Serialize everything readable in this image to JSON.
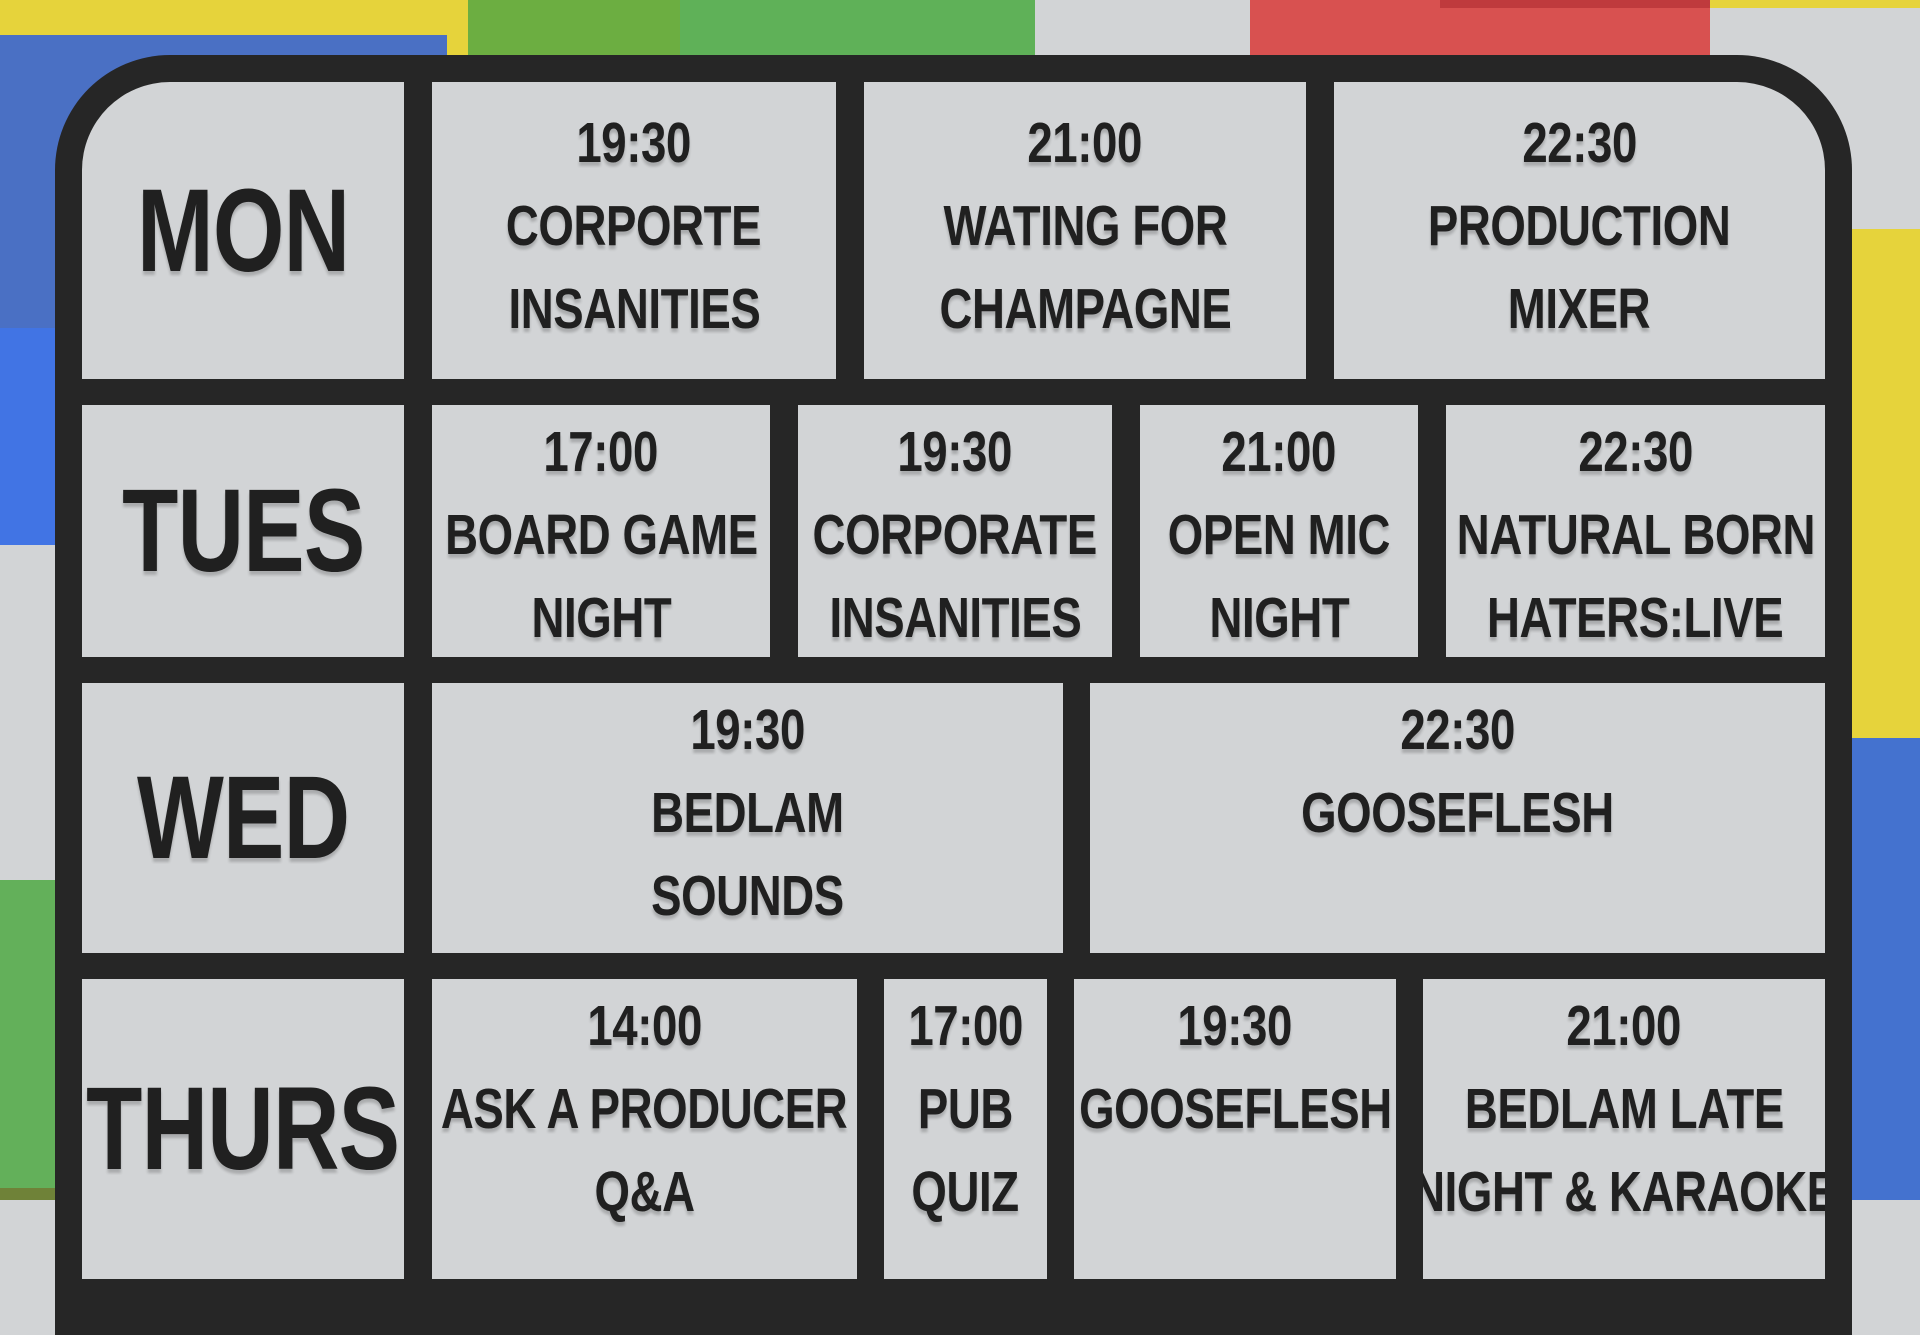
{
  "poster": {
    "kind": "weekly-event-schedule"
  },
  "colors": {
    "ink": "#262626",
    "cell_gray": "#d2d4d6",
    "text": "#202020",
    "yellow": "#e6d33b",
    "green_yellowish": "#6cae41",
    "green_soft": "#5fb158",
    "green_left": "#63b05a",
    "olive": "#6f8238",
    "red": "#d85150",
    "red_dark": "#bf3a3d",
    "blue_mid": "#4a70c4",
    "blue_bright": "#4174e4",
    "blue_right": "#4472cf"
  },
  "schedule": {
    "rows": [
      {
        "day": "MON",
        "events": [
          {
            "time": "19:30",
            "title_lines": [
              "CORPORTE",
              "INSANITIES"
            ]
          },
          {
            "time": "21:00",
            "title_lines": [
              "WATING FOR",
              "CHAMPAGNE"
            ]
          },
          {
            "time": "22:30",
            "title_lines": [
              "PRODUCTION",
              "MIXER"
            ]
          }
        ]
      },
      {
        "day": "TUES",
        "events": [
          {
            "time": "17:00",
            "title_lines": [
              "BOARD GAME",
              "NIGHT"
            ]
          },
          {
            "time": "19:30",
            "title_lines": [
              "CORPORATE",
              "INSANITIES"
            ]
          },
          {
            "time": "21:00",
            "title_lines": [
              "OPEN MIC",
              "NIGHT"
            ]
          },
          {
            "time": "22:30",
            "title_lines": [
              "NATURAL BORN",
              "HATERS:LIVE"
            ]
          }
        ]
      },
      {
        "day": "WED",
        "events": [
          {
            "time": "19:30",
            "title_lines": [
              "BEDLAM",
              "SOUNDS"
            ]
          },
          {
            "time": "22:30",
            "title_lines": [
              "GOOSEFLESH"
            ]
          }
        ]
      },
      {
        "day": "THURS",
        "events": [
          {
            "time": "14:00",
            "title_lines": [
              "ASK A PRODUCER",
              "Q&A"
            ]
          },
          {
            "time": "17:00",
            "title_lines": [
              "PUB",
              "QUIZ"
            ]
          },
          {
            "time": "19:30",
            "title_lines": [
              "GOOSEFLESH"
            ]
          },
          {
            "time": "21:00",
            "title_lines": [
              "BEDLAM LATE",
              "NIGHT & KARAOKE"
            ]
          }
        ]
      }
    ]
  }
}
